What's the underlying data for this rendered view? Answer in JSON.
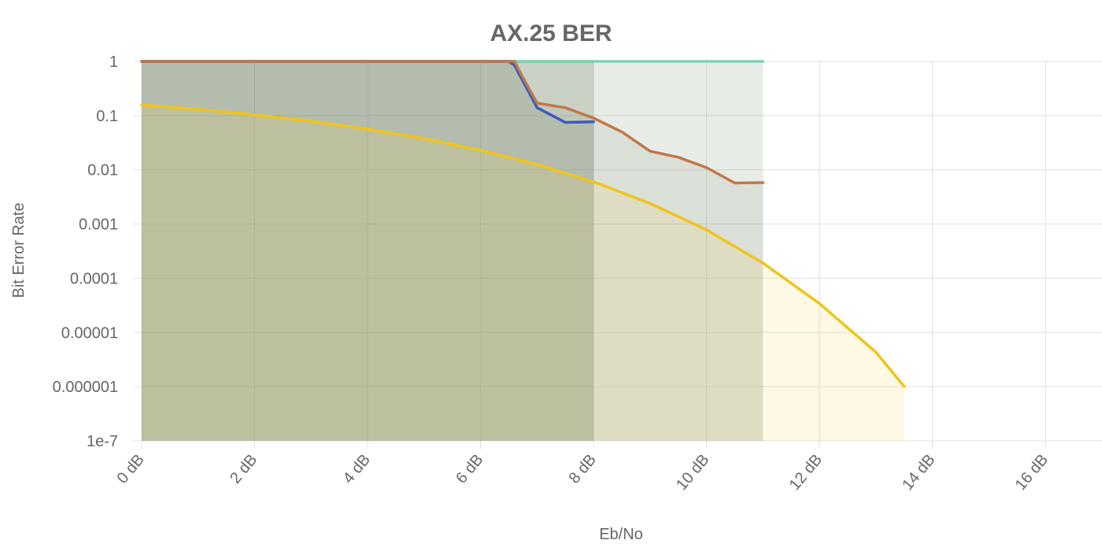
{
  "chart_data": {
    "type": "area",
    "title": "AX.25 BER",
    "xlabel": "Eb/No",
    "ylabel": "Bit Error Rate",
    "x_unit": "dB",
    "xlim": [
      0,
      17
    ],
    "ylim": [
      1e-07,
      1
    ],
    "y_scale": "log",
    "grid": true,
    "legend": "none",
    "x_ticks": [
      0,
      2,
      4,
      6,
      8,
      10,
      12,
      14,
      16
    ],
    "x_tick_labels": [
      "0 dB",
      "2 dB",
      "4 dB",
      "6 dB",
      "8 dB",
      "10 dB",
      "12 dB",
      "14 dB",
      "16 dB"
    ],
    "y_ticks": [
      1,
      0.1,
      0.01,
      0.001,
      0.0001,
      1e-05,
      1e-06,
      1e-07
    ],
    "y_tick_labels": [
      "1",
      "0.1",
      "0.01",
      "0.001",
      "0.0001",
      "0.00001",
      "0.000001",
      "1e-7"
    ],
    "series": [
      {
        "color": "#6ab04c",
        "fill": "rgba(110,130,90,0.25)",
        "x": [
          0,
          0.5,
          1,
          1.5,
          2,
          2.5,
          3,
          3.5,
          4,
          4.5,
          5,
          5.5,
          6,
          6.5,
          7,
          7.5,
          8
        ],
        "y": [
          1,
          1,
          1,
          1,
          1,
          1,
          1,
          1,
          1,
          1,
          1,
          1,
          1,
          1,
          1,
          1,
          1
        ]
      },
      {
        "color": "#7fd3b8",
        "fill": "rgba(130,150,120,0.18)",
        "x": [
          0,
          1,
          2,
          3,
          4,
          5,
          6,
          7,
          8,
          9,
          10,
          11
        ],
        "y": [
          1,
          1,
          1,
          1,
          1,
          1,
          1,
          1,
          1,
          1,
          1,
          1
        ]
      },
      {
        "color": "#3a5bbf",
        "fill": "rgba(100,120,110,0.15)",
        "x": [
          0,
          6.5,
          6.6,
          7,
          7.5,
          8
        ],
        "y": [
          1,
          1,
          0.85,
          0.14,
          0.075,
          0.077
        ]
      },
      {
        "color": "#c0784a",
        "fill": "rgba(120,130,110,0.12)",
        "x": [
          0,
          6.6,
          6.75,
          7,
          7.5,
          8,
          8.5,
          9,
          9.5,
          10,
          10.5,
          11
        ],
        "y": [
          1,
          1,
          0.5,
          0.17,
          0.14,
          0.09,
          0.05,
          0.022,
          0.017,
          0.011,
          0.0057,
          0.0058
        ]
      },
      {
        "color": "#f0c419",
        "fill": "rgba(250,215,80,0.15)",
        "x": [
          0,
          1,
          2,
          3,
          4,
          5,
          6,
          7,
          8,
          9,
          10,
          11,
          12,
          13,
          13.5
        ],
        "y": [
          0.158,
          0.131,
          0.104,
          0.0789,
          0.0565,
          0.0377,
          0.023,
          0.0126,
          0.006,
          0.0024,
          0.00078,
          0.00019,
          3.4e-05,
          4.3e-06,
          1e-06
        ]
      }
    ]
  }
}
